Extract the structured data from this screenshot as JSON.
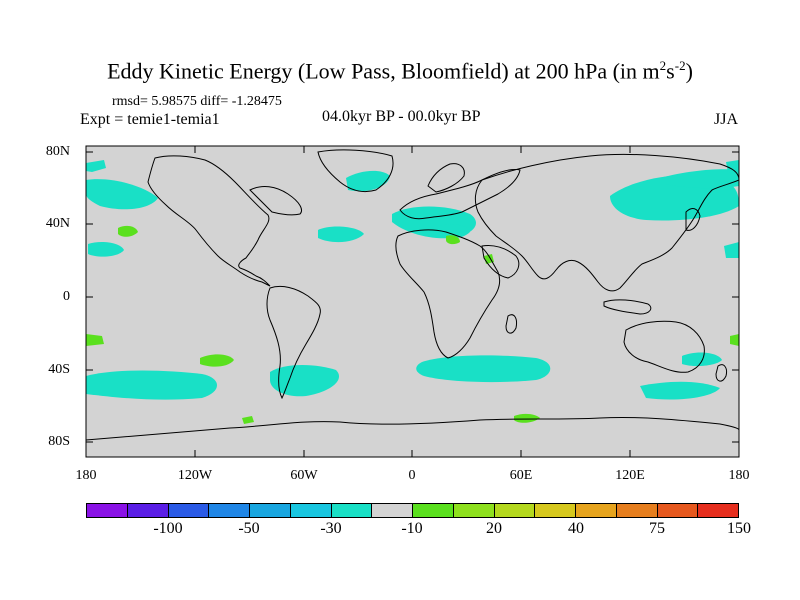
{
  "figure": {
    "title_main": "Eddy Kinetic Energy (Low Pass, Bloomfield) at 200 hPa (in m",
    "title_sup1": "2",
    "title_mid": "s",
    "title_sup2": "-2",
    "title_end": ")",
    "stats": "rmsd= 5.98575 diff= -1.28475",
    "expt": "Expt = temie1-temia1",
    "period": "04.0kyr BP - 00.0kyr BP",
    "season": "JJA"
  },
  "axes": {
    "lat_labels": [
      "80N",
      "40N",
      "0",
      "40S",
      "80S"
    ],
    "lon_labels": [
      "180",
      "120W",
      "60W",
      "0",
      "60E",
      "120E",
      "180"
    ]
  },
  "colorbar": {
    "colors": [
      "#8a12e6",
      "#5a1ee6",
      "#2a5ae6",
      "#1f86e6",
      "#19a6e0",
      "#19c6e0",
      "#19e0c6",
      "#d3d3d3",
      "#5ae01e",
      "#8ee01e",
      "#b4d81e",
      "#d6c81e",
      "#e6a41e",
      "#e67e1e",
      "#e6581e",
      "#e62e1e"
    ],
    "labels": [
      "-100",
      "-50",
      "-30",
      "-10",
      "20",
      "40",
      "75",
      "150"
    ]
  },
  "map": {
    "background_color": "#d3d3d3",
    "cyan_color": "#19e0c6",
    "green_color": "#5ae01e"
  }
}
